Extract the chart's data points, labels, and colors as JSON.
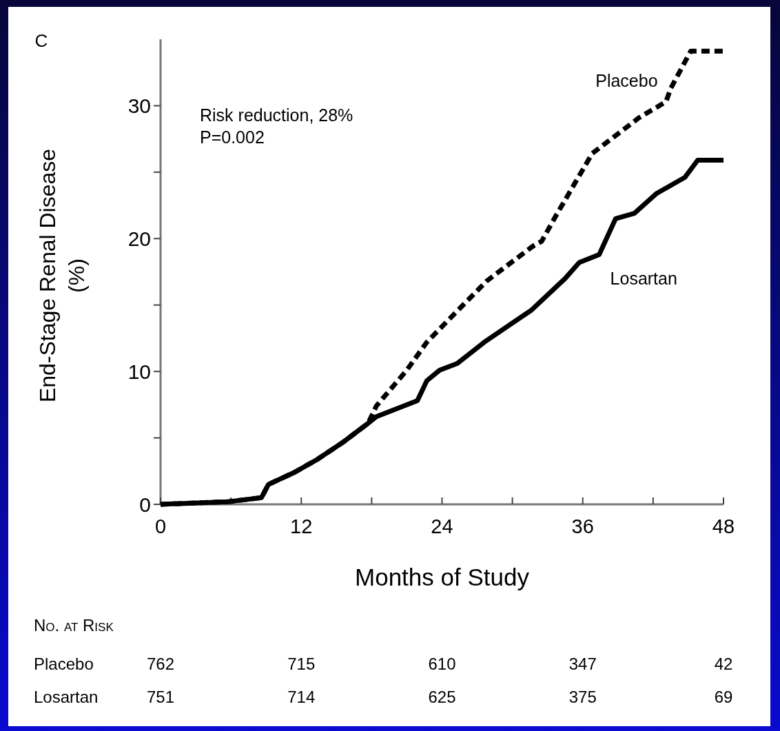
{
  "chart_data": {
    "type": "line",
    "ylabel": "End-Stage Renal Disease\n(%)",
    "xlabel": "Months of Study",
    "xlim": [
      0,
      48
    ],
    "ylim": [
      0,
      35
    ],
    "xticks": [
      0,
      {
        "value": 6,
        "label": null
      },
      12,
      {
        "value": 18,
        "label": null
      },
      24,
      {
        "value": 30,
        "label": null
      },
      36,
      {
        "value": 42,
        "label": null
      },
      48
    ],
    "yticks": [
      0,
      {
        "value": 5,
        "label": null
      },
      10,
      {
        "value": 15,
        "label": null
      },
      20,
      {
        "value": 25,
        "label": null
      },
      30
    ],
    "grid": false,
    "marker": "none",
    "series": [
      {
        "name": "Placebo",
        "color": "#000000",
        "line_style": "dashed",
        "x": [
          0,
          5.8,
          8.6,
          9.2,
          11.4,
          13.4,
          15.6,
          17.7,
          18.4,
          21.0,
          22.7,
          23.8,
          27.8,
          31.7,
          32.5,
          33.7,
          36.8,
          40.8,
          43.1,
          43.5,
          45.2,
          48
        ],
        "values": [
          0,
          0.2,
          0.5,
          1.5,
          2.4,
          3.4,
          4.7,
          6.1,
          7.4,
          10.1,
          12.2,
          13.2,
          16.8,
          19.4,
          19.8,
          21.7,
          26.4,
          29.1,
          30.3,
          31.3,
          34.1,
          34.1
        ]
      },
      {
        "name": "Losartan",
        "color": "#000000",
        "line_style": "solid",
        "x": [
          0,
          5.8,
          8.6,
          9.2,
          11.4,
          13.4,
          15.6,
          17.7,
          18.4,
          21.9,
          22.7,
          23.8,
          25.3,
          27.6,
          31.6,
          34.5,
          35.7,
          37.4,
          38.8,
          40.4,
          42.3,
          44.7,
          45.8,
          48
        ],
        "values": [
          0,
          0.2,
          0.5,
          1.5,
          2.4,
          3.4,
          4.7,
          6.1,
          6.6,
          7.8,
          9.3,
          10.1,
          10.6,
          12.2,
          14.6,
          17.0,
          18.2,
          18.8,
          21.5,
          21.9,
          23.4,
          24.6,
          25.9,
          25.9
        ]
      }
    ],
    "annotations": [
      "C",
      "Risk reduction, 28%",
      "P=0.002",
      "No. at Risk",
      "Placebo",
      "762",
      "715",
      "610",
      "347",
      "42",
      "Losartan",
      "751",
      "714",
      "625",
      "375",
      "69"
    ]
  }
}
